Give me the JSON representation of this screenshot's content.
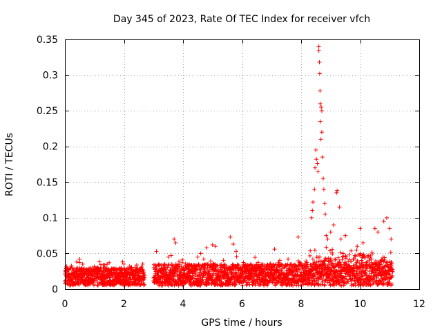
{
  "chart_data": {
    "type": "scatter",
    "title": "Day 345 of 2023, Rate Of TEC Index for receiver vfch",
    "xlabel": "GPS time / hours",
    "ylabel": "ROTI / TECUs",
    "xlim": [
      0,
      12
    ],
    "ylim": [
      0,
      0.35
    ],
    "x_ticks": [
      0,
      2,
      4,
      6,
      8,
      10,
      12
    ],
    "x_tick_labels": [
      "0",
      "2",
      "4",
      "6",
      "8",
      "10",
      "12"
    ],
    "y_ticks": [
      0,
      0.05,
      0.1,
      0.15,
      0.2,
      0.25,
      0.3,
      0.35
    ],
    "y_tick_labels": [
      "0",
      "0.05",
      "0.1",
      "0.15",
      "0.2",
      "0.25",
      "0.3",
      "0.35"
    ],
    "grid": true,
    "marker": "+",
    "color": "#ff0000",
    "series": [
      {
        "name": "ROTI",
        "segments": [
          {
            "x_start": 0.0,
            "x_end": 2.7,
            "baseline_low": 0.005,
            "baseline_high": 0.03
          },
          {
            "x_start": 3.0,
            "x_end": 11.1,
            "baseline_low": 0.005,
            "baseline_high": 0.035
          }
        ],
        "points": [
          [
            0.05,
            0.032
          ],
          [
            0.4,
            0.038
          ],
          [
            0.5,
            0.042
          ],
          [
            0.6,
            0.035
          ],
          [
            1.3,
            0.034
          ],
          [
            1.5,
            0.037
          ],
          [
            2.0,
            0.035
          ],
          [
            2.6,
            0.031
          ],
          [
            3.1,
            0.053
          ],
          [
            3.5,
            0.045
          ],
          [
            3.6,
            0.047
          ],
          [
            3.7,
            0.07
          ],
          [
            3.75,
            0.065
          ],
          [
            4.5,
            0.045
          ],
          [
            4.6,
            0.05
          ],
          [
            4.8,
            0.058
          ],
          [
            5.0,
            0.062
          ],
          [
            5.1,
            0.06
          ],
          [
            5.6,
            0.073
          ],
          [
            5.7,
            0.063
          ],
          [
            5.8,
            0.053
          ],
          [
            7.1,
            0.056
          ],
          [
            7.9,
            0.073
          ],
          [
            8.35,
            0.1
          ],
          [
            8.38,
            0.11
          ],
          [
            8.4,
            0.122
          ],
          [
            8.45,
            0.14
          ],
          [
            8.47,
            0.17
          ],
          [
            8.5,
            0.195
          ],
          [
            8.52,
            0.182
          ],
          [
            8.55,
            0.176
          ],
          [
            8.57,
            0.165
          ],
          [
            8.6,
            0.34
          ],
          [
            8.6,
            0.334
          ],
          [
            8.62,
            0.318
          ],
          [
            8.63,
            0.302
          ],
          [
            8.64,
            0.278
          ],
          [
            8.65,
            0.26
          ],
          [
            8.65,
            0.235
          ],
          [
            8.67,
            0.21
          ],
          [
            8.68,
            0.255
          ],
          [
            8.7,
            0.25
          ],
          [
            8.7,
            0.22
          ],
          [
            8.72,
            0.185
          ],
          [
            8.75,
            0.155
          ],
          [
            8.77,
            0.14
          ],
          [
            8.8,
            0.12
          ],
          [
            8.82,
            0.105
          ],
          [
            8.85,
            0.075
          ],
          [
            8.9,
            0.07
          ],
          [
            9.0,
            0.08
          ],
          [
            9.1,
            0.09
          ],
          [
            9.2,
            0.135
          ],
          [
            9.22,
            0.138
          ],
          [
            9.3,
            0.115
          ],
          [
            9.35,
            0.07
          ],
          [
            9.5,
            0.075
          ],
          [
            9.9,
            0.06
          ],
          [
            10.0,
            0.085
          ],
          [
            10.1,
            0.065
          ],
          [
            10.5,
            0.085
          ],
          [
            10.6,
            0.08
          ],
          [
            10.8,
            0.095
          ],
          [
            10.9,
            0.1
          ],
          [
            11.0,
            0.085
          ],
          [
            11.05,
            0.07
          ]
        ]
      }
    ]
  }
}
